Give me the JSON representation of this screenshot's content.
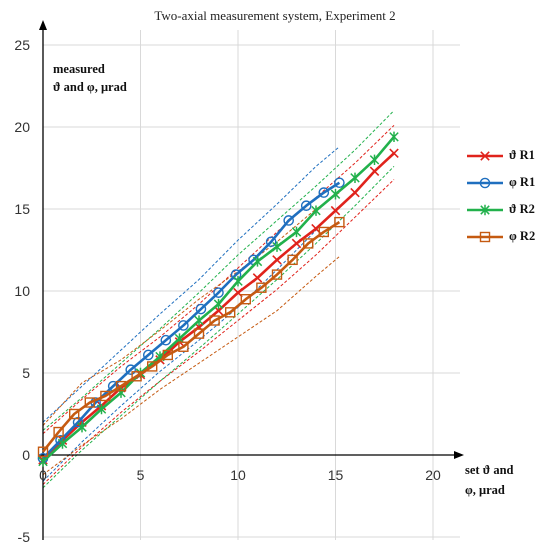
{
  "chart_data": {
    "type": "line",
    "title": "Two-axial measurement system, Experiment 2",
    "ylabel_lines": [
      "measured",
      "ϑ and φ, μrad"
    ],
    "xlabel_lines": [
      "set ϑ and",
      "φ, μrad"
    ],
    "xlim": [
      0,
      20
    ],
    "ylim": [
      -5,
      25
    ],
    "x_ticks": [
      "0",
      "5",
      "10",
      "15",
      "20"
    ],
    "y_ticks": [
      "-5",
      "0",
      "5",
      "10",
      "15",
      "20",
      "25"
    ],
    "legend_position": "right",
    "series": [
      {
        "name": "ϑ R1",
        "color": "#e0231c",
        "marker": "x",
        "x": [
          0,
          1,
          2,
          3,
          4,
          5,
          6,
          7,
          8,
          9,
          10,
          11,
          12,
          13,
          14,
          15,
          16,
          17,
          18
        ],
        "y": [
          -0.3,
          0.9,
          2.0,
          3.0,
          4.1,
          4.9,
          5.8,
          6.9,
          7.8,
          8.8,
          9.9,
          10.8,
          11.9,
          12.9,
          13.8,
          14.9,
          16.0,
          17.3,
          18.4
        ]
      },
      {
        "name": "φ R1",
        "color": "#1f6fbf",
        "marker": "o",
        "x": [
          0,
          0.9,
          1.8,
          2.7,
          3.6,
          4.5,
          5.4,
          6.3,
          7.2,
          8.1,
          9.0,
          9.9,
          10.8,
          11.7,
          12.6,
          13.5,
          14.4,
          15.2
        ],
        "y": [
          -0.2,
          0.9,
          2.0,
          3.2,
          4.2,
          5.2,
          6.1,
          7.0,
          7.9,
          8.9,
          9.9,
          11.0,
          11.9,
          13.0,
          14.3,
          15.2,
          16.0,
          16.6
        ]
      },
      {
        "name": "ϑ R2",
        "color": "#22b14c",
        "marker": "*",
        "x": [
          0,
          1,
          2,
          3,
          4,
          5,
          6,
          7,
          8,
          9,
          10,
          11,
          12,
          13,
          14,
          15,
          16,
          17,
          18
        ],
        "y": [
          -0.4,
          0.7,
          1.7,
          2.8,
          3.8,
          5.0,
          6.0,
          7.1,
          8.2,
          9.2,
          10.6,
          11.8,
          12.7,
          13.6,
          14.9,
          15.9,
          16.9,
          18.0,
          19.4
        ]
      },
      {
        "name": "φ R2",
        "color": "#c55a11",
        "marker": "square",
        "x": [
          0,
          0.8,
          1.6,
          2.4,
          3.2,
          4.0,
          4.8,
          5.6,
          6.4,
          7.2,
          8.0,
          8.8,
          9.6,
          10.4,
          11.2,
          12.0,
          12.8,
          13.6,
          14.4,
          15.2
        ],
        "y": [
          0.2,
          1.4,
          2.5,
          3.2,
          3.6,
          4.2,
          4.8,
          5.4,
          6.1,
          6.6,
          7.4,
          8.2,
          8.7,
          9.5,
          10.2,
          11.0,
          11.9,
          12.9,
          13.6,
          14.2
        ]
      }
    ],
    "bands": [
      {
        "color": "#e0231c",
        "x": [
          0,
          2,
          4,
          6,
          8,
          10,
          12,
          14,
          16,
          18
        ],
        "y": [
          -1.8,
          0.5,
          2.6,
          4.5,
          6.3,
          8.2,
          10.1,
          12.2,
          14.5,
          16.8
        ]
      },
      {
        "color": "#e0231c",
        "x": [
          0,
          2,
          4,
          6,
          8,
          10,
          12,
          14,
          16,
          18
        ],
        "y": [
          1.3,
          3.4,
          5.4,
          7.2,
          9.2,
          11.4,
          13.6,
          15.7,
          17.8,
          20.1
        ]
      },
      {
        "color": "#1f6fbf",
        "x": [
          0,
          2,
          4,
          6,
          8,
          10,
          12,
          14,
          15.2
        ],
        "y": [
          -1.6,
          0.8,
          3.0,
          5.1,
          7.0,
          9.0,
          11.3,
          13.7,
          15.2
        ]
      },
      {
        "color": "#1f6fbf",
        "x": [
          0,
          2,
          4,
          6,
          8,
          10,
          12,
          14,
          15.2
        ],
        "y": [
          2.0,
          4.2,
          6.4,
          8.6,
          10.7,
          13.1,
          15.3,
          17.6,
          18.8
        ]
      },
      {
        "color": "#22b14c",
        "x": [
          0,
          2,
          4,
          6,
          8,
          10,
          12,
          14,
          16,
          18
        ],
        "y": [
          -2.0,
          0.3,
          2.4,
          4.5,
          6.5,
          8.6,
          10.7,
          12.9,
          15.2,
          17.6
        ]
      },
      {
        "color": "#22b14c",
        "x": [
          0,
          2,
          4,
          6,
          8,
          10,
          12,
          14,
          16,
          18
        ],
        "y": [
          1.5,
          3.5,
          5.6,
          7.7,
          9.9,
          12.2,
          14.3,
          16.4,
          18.6,
          21.0
        ]
      },
      {
        "color": "#c55a11",
        "x": [
          0,
          2,
          4,
          6,
          8,
          10,
          12,
          14,
          15.2
        ],
        "y": [
          -1.2,
          0.6,
          2.2,
          4.0,
          5.6,
          7.2,
          8.8,
          10.9,
          12.1
        ]
      },
      {
        "color": "#c55a11",
        "x": [
          0,
          2,
          4,
          6,
          8,
          10,
          12,
          14,
          15.2
        ],
        "y": [
          1.8,
          4.4,
          5.8,
          7.6,
          9.5,
          11.2,
          13.0,
          15.0,
          16.0
        ]
      }
    ]
  }
}
